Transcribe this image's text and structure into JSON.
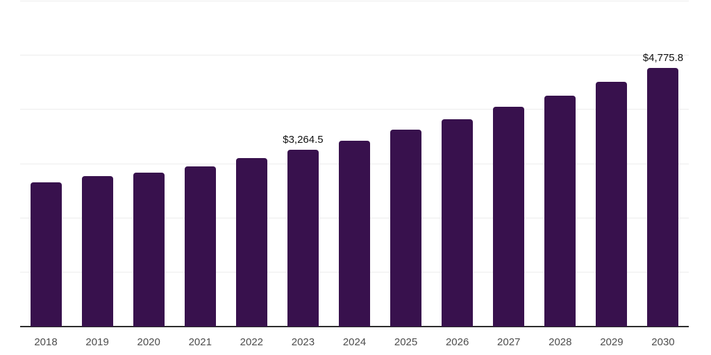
{
  "chart_data": {
    "type": "bar",
    "title": "",
    "xlabel": "",
    "ylabel": "",
    "categories": [
      "2018",
      "2019",
      "2020",
      "2021",
      "2022",
      "2023",
      "2024",
      "2025",
      "2026",
      "2027",
      "2028",
      "2029",
      "2030"
    ],
    "values": [
      2664,
      2780,
      2844,
      2958,
      3111,
      3264.5,
      3430,
      3634,
      3826,
      4055,
      4259,
      4514,
      4775.8
    ],
    "annotations": [
      {
        "category": "2023",
        "text": "$3,264.5"
      },
      {
        "category": "2030",
        "text": "$4,775.8"
      }
    ],
    "ylim": [
      0,
      6000
    ],
    "grid_step": 1000,
    "grid": true,
    "legend": false,
    "bar_color": "#38114d",
    "grid_color": "#ededed",
    "axis_color": "#2d2d2d",
    "label_color": "#111111",
    "tick_color": "#4d4d4d"
  }
}
